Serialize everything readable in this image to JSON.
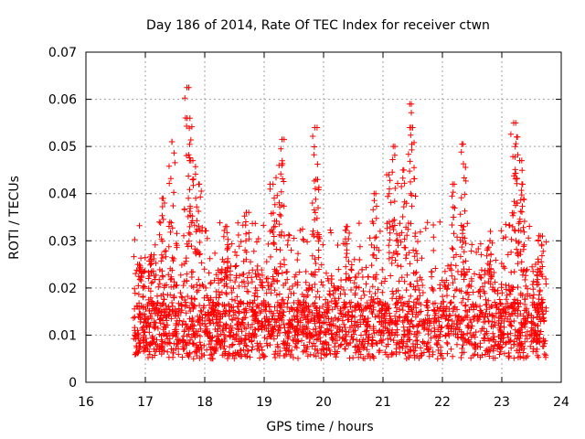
{
  "chart_data": {
    "type": "scatter",
    "title": "Day 186 of 2014, Rate Of TEC Index for receiver ctwn",
    "xlabel": "GPS time / hours",
    "ylabel": "ROTI / TECUs",
    "xlim": [
      16,
      24
    ],
    "ylim": [
      0,
      0.07
    ],
    "grid": true,
    "marker": "+",
    "color": "#ff0000",
    "x_ticks": [
      "16",
      "17",
      "18",
      "19",
      "20",
      "21",
      "22",
      "23",
      "24"
    ],
    "y_ticks": [
      "0",
      "0.01",
      "0.02",
      "0.03",
      "0.04",
      "0.05",
      "0.06",
      "0.07"
    ],
    "series": [
      {
        "name": "ROTI",
        "time_range": [
          16.8,
          23.75
        ],
        "baseline_band": [
          0.005,
          0.03
        ],
        "peaks": [
          {
            "x": 16.9,
            "y": 0.025
          },
          {
            "x": 17.1,
            "y": 0.027
          },
          {
            "x": 17.3,
            "y": 0.039
          },
          {
            "x": 17.45,
            "y": 0.051
          },
          {
            "x": 17.7,
            "y": 0.0625
          },
          {
            "x": 17.75,
            "y": 0.056
          },
          {
            "x": 17.8,
            "y": 0.047
          },
          {
            "x": 17.9,
            "y": 0.042
          },
          {
            "x": 18.35,
            "y": 0.033
          },
          {
            "x": 18.7,
            "y": 0.036
          },
          {
            "x": 19.15,
            "y": 0.042
          },
          {
            "x": 19.25,
            "y": 0.046
          },
          {
            "x": 19.3,
            "y": 0.0515
          },
          {
            "x": 19.85,
            "y": 0.054
          },
          {
            "x": 19.9,
            "y": 0.043
          },
          {
            "x": 20.4,
            "y": 0.033
          },
          {
            "x": 20.85,
            "y": 0.04
          },
          {
            "x": 21.1,
            "y": 0.044
          },
          {
            "x": 21.2,
            "y": 0.05
          },
          {
            "x": 21.35,
            "y": 0.045
          },
          {
            "x": 21.45,
            "y": 0.059
          },
          {
            "x": 21.5,
            "y": 0.054
          },
          {
            "x": 22.2,
            "y": 0.042
          },
          {
            "x": 22.35,
            "y": 0.0505
          },
          {
            "x": 22.35,
            "y": 0.033
          },
          {
            "x": 22.8,
            "y": 0.03
          },
          {
            "x": 23.2,
            "y": 0.055
          },
          {
            "x": 23.25,
            "y": 0.052
          },
          {
            "x": 23.3,
            "y": 0.047
          },
          {
            "x": 23.35,
            "y": 0.042
          },
          {
            "x": 23.65,
            "y": 0.031
          }
        ]
      }
    ]
  }
}
